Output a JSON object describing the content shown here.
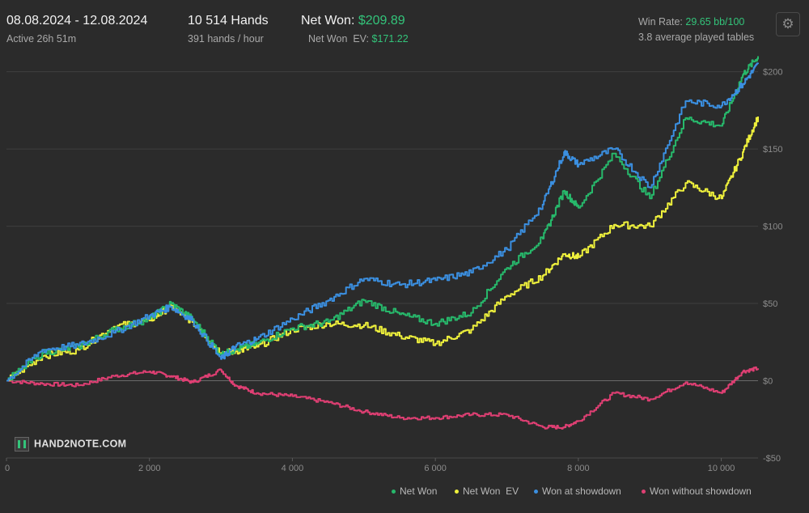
{
  "header": {
    "date_range": "08.08.2024 - 12.08.2024",
    "active_time": "Active 26h 51m",
    "hands_count": "10 514 Hands",
    "hands_per_hour": "391 hands / hour",
    "net_won_label": "Net Won:",
    "net_won_value": "$209.89",
    "net_won_ev_label": "Net Won  EV:",
    "net_won_ev_value": "$171.22",
    "win_rate_label": "Win Rate:",
    "win_rate_value": "29.65 bb/100",
    "avg_tables": "3.8 average played tables"
  },
  "settings_icon": "gear-icon",
  "logo_text": "HAND2NOTE.COM",
  "colors": {
    "background": "#2b2b2b",
    "net_won": "#27b86b",
    "net_won_ev": "#eef03c",
    "showdown": "#3b8fe0",
    "non_showdown": "#df3f73",
    "accent_green": "#33c47a"
  },
  "chart_data": {
    "type": "line",
    "xlim": [
      0,
      10514
    ],
    "ylim": [
      -50,
      215
    ],
    "x_ticks": [
      0,
      2000,
      4000,
      6000,
      8000,
      10000
    ],
    "x_tick_labels": [
      "0",
      "2 000",
      "4 000",
      "6 000",
      "8 000",
      "10 000"
    ],
    "y_ticks": [
      200,
      150,
      100,
      50,
      0,
      -50
    ],
    "y_tick_labels": [
      "$200",
      "$150",
      "$100",
      "$50",
      "$0",
      "-$50"
    ],
    "grid": true,
    "legend_position": "bottom-right",
    "x": [
      0,
      500,
      1000,
      1500,
      2000,
      2300,
      2600,
      3000,
      3200,
      3500,
      4000,
      4500,
      5000,
      5500,
      6000,
      6500,
      7000,
      7500,
      7800,
      8000,
      8500,
      9000,
      9500,
      10000,
      10300,
      10514
    ],
    "series": [
      {
        "name": "Net Won",
        "values": [
          0,
          18,
          22,
          33,
          40,
          50,
          40,
          17,
          20,
          24,
          34,
          38,
          52,
          43,
          37,
          44,
          73,
          92,
          123,
          112,
          147,
          118,
          170,
          165,
          198,
          210
        ]
      },
      {
        "name": "Net Won  EV",
        "values": [
          0,
          16,
          20,
          35,
          39,
          48,
          38,
          18,
          19,
          22,
          33,
          37,
          36,
          29,
          24,
          33,
          55,
          68,
          82,
          80,
          101,
          100,
          128,
          118,
          148,
          171
        ]
      },
      {
        "name": "Won at showdown",
        "values": [
          0,
          20,
          23,
          31,
          42,
          48,
          39,
          14,
          22,
          27,
          40,
          52,
          66,
          62,
          65,
          70,
          85,
          114,
          148,
          140,
          150,
          125,
          181,
          178,
          192,
          205
        ]
      },
      {
        "name": "Won without showdown",
        "values": [
          0,
          -2,
          -3,
          3,
          6,
          3,
          -1,
          7,
          -3,
          -8,
          -10,
          -14,
          -20,
          -24,
          -24,
          -22,
          -22,
          -30,
          -30,
          -26,
          -8,
          -12,
          -1,
          -8,
          6,
          8
        ]
      }
    ]
  }
}
